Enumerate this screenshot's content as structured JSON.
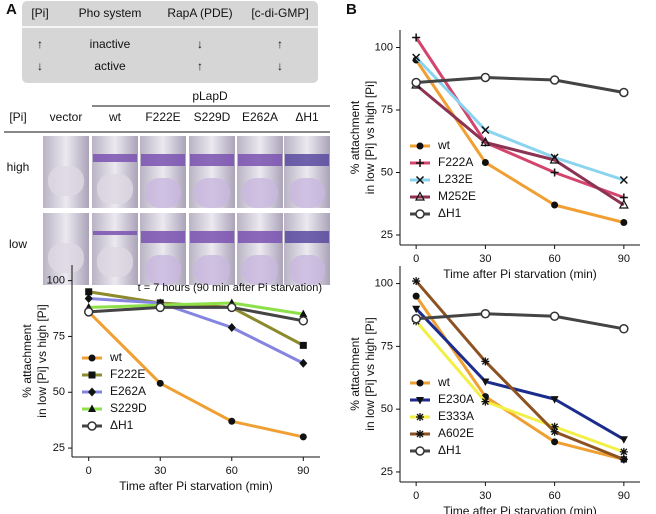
{
  "panel_labels": [
    "A",
    "B"
  ],
  "table": {
    "header": [
      "[Pi]",
      "Pho system",
      "RapA (PDE)",
      "[c-di-GMP]"
    ],
    "rows": [
      [
        "↑",
        "inactive",
        "↓",
        "↑"
      ],
      [
        "↓",
        "active",
        "↑",
        "↓"
      ]
    ]
  },
  "photo_panel": {
    "group_label": "pLapD",
    "row_header": "[Pi]",
    "columns": [
      "vector",
      "wt",
      "F222E",
      "S229D",
      "E262A",
      "ΔH1"
    ],
    "rows": [
      "high",
      "low"
    ],
    "caption": "t = 7 hours (90 min after Pi starvation)"
  },
  "chart_data": [
    {
      "type": "line",
      "x_label": "Time after Pi starvation (min)",
      "y_label": [
        "% attachment",
        "in low [Pi] vs high [Pi]"
      ],
      "x": [
        0,
        30,
        60,
        90
      ],
      "xlim": [
        -7,
        97
      ],
      "ylim": [
        21,
        107
      ],
      "xticks": [
        0,
        30,
        60,
        90
      ],
      "yticks": [
        25,
        50,
        75,
        100
      ],
      "legend": "lower left",
      "series": [
        {
          "name": "wt",
          "color": "#f0a033",
          "marker": "circle",
          "values": [
            86,
            54,
            37,
            30
          ]
        },
        {
          "name": "F222E",
          "color": "#8c8a2c",
          "marker": "square",
          "values": [
            95,
            90,
            88,
            71
          ]
        },
        {
          "name": "E262A",
          "color": "#8585e0",
          "marker": "diamond",
          "values": [
            92,
            90,
            79,
            63
          ]
        },
        {
          "name": "S229D",
          "color": "#8ee04a",
          "marker": "triangle",
          "values": [
            88,
            89,
            90,
            85
          ]
        },
        {
          "name": "ΔH1",
          "color": "#444444",
          "marker": "open-circle",
          "values": [
            86,
            88,
            88,
            82
          ]
        }
      ]
    },
    {
      "type": "line",
      "x_label": "Time after Pi starvation (min)",
      "y_label": [
        "% attachment",
        "in low [Pi] vs high [Pi]"
      ],
      "x": [
        0,
        30,
        60,
        90
      ],
      "xlim": [
        -7,
        97
      ],
      "ylim": [
        21,
        107
      ],
      "xticks": [
        0,
        30,
        60,
        90
      ],
      "yticks": [
        25,
        50,
        75,
        100
      ],
      "legend": "lower left",
      "series": [
        {
          "name": "wt",
          "color": "#f0a033",
          "marker": "circle",
          "values": [
            95,
            54,
            37,
            30
          ]
        },
        {
          "name": "F222A",
          "color": "#d4456e",
          "marker": "plus",
          "values": [
            104,
            62,
            50,
            40
          ]
        },
        {
          "name": "L232E",
          "color": "#8ad4f0",
          "marker": "x",
          "values": [
            96,
            67,
            56,
            47
          ]
        },
        {
          "name": "M252E",
          "color": "#8c3252",
          "marker": "open-triangle",
          "values": [
            85,
            62,
            55,
            37
          ]
        },
        {
          "name": "ΔH1",
          "color": "#444444",
          "marker": "open-circle",
          "values": [
            86,
            88,
            87,
            82
          ]
        }
      ]
    },
    {
      "type": "line",
      "x_label": "Time after Pi starvation (min)",
      "y_label": [
        "% attachment",
        "in low [Pi] vs high [Pi]"
      ],
      "x": [
        0,
        30,
        60,
        90
      ],
      "xlim": [
        -7,
        97
      ],
      "ylim": [
        21,
        107
      ],
      "xticks": [
        0,
        30,
        60,
        90
      ],
      "yticks": [
        25,
        50,
        75,
        100
      ],
      "legend": "lower left",
      "series": [
        {
          "name": "wt",
          "color": "#f0a033",
          "marker": "circle",
          "values": [
            95,
            55,
            37,
            30
          ]
        },
        {
          "name": "E230A",
          "color": "#1c2c8c",
          "marker": "triangle-down",
          "values": [
            90,
            61,
            54,
            38
          ]
        },
        {
          "name": "E333A",
          "color": "#f2f046",
          "marker": "star",
          "values": [
            85,
            53,
            43,
            33
          ]
        },
        {
          "name": "A602E",
          "color": "#8c5222",
          "marker": "star",
          "values": [
            101,
            69,
            41,
            30
          ]
        },
        {
          "name": "ΔH1",
          "color": "#444444",
          "marker": "open-circle",
          "values": [
            86,
            88,
            87,
            82
          ]
        }
      ]
    }
  ]
}
